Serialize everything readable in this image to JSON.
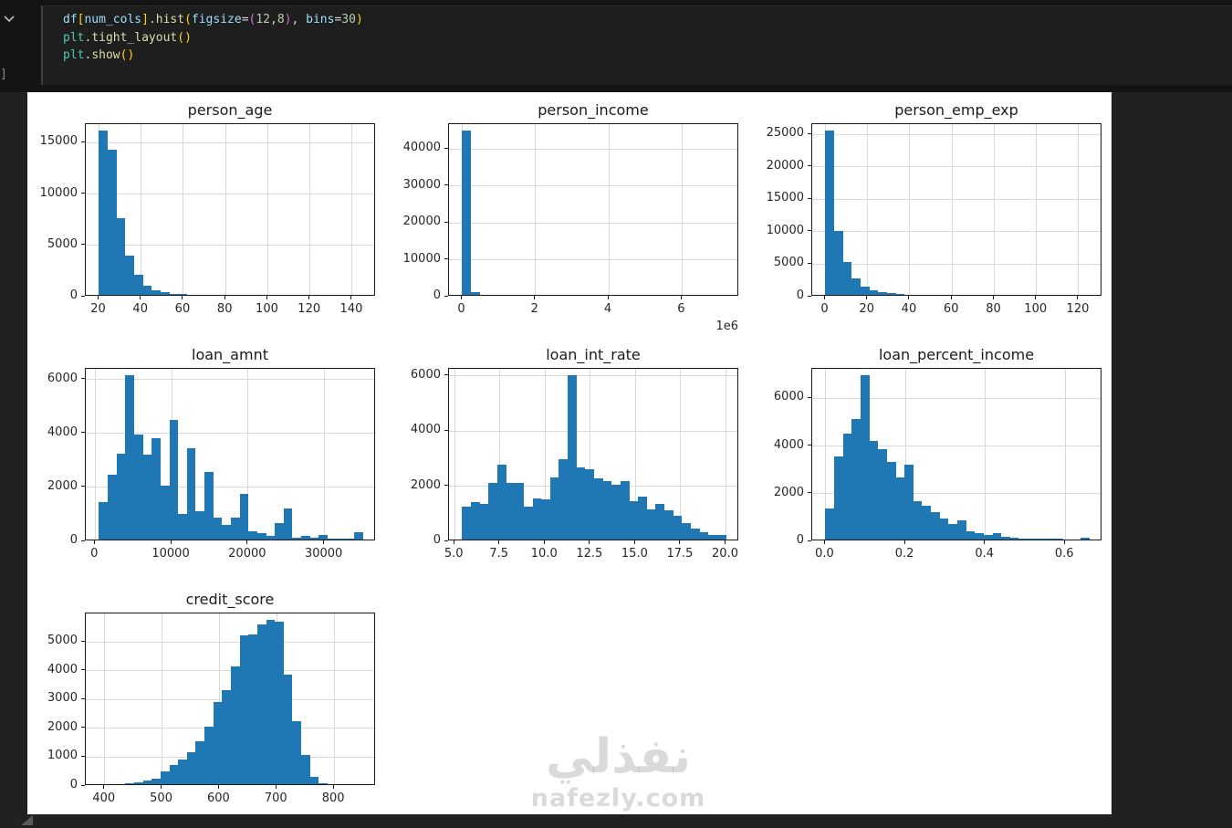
{
  "code_cell": {
    "execution_bracket": "]",
    "lines": [
      [
        {
          "t": "df",
          "c": "v"
        },
        {
          "t": "[",
          "c": "b1"
        },
        {
          "t": "num_cols",
          "c": "v"
        },
        {
          "t": "]",
          "c": "b1"
        },
        {
          "t": ".",
          "c": "p"
        },
        {
          "t": "hist",
          "c": "f"
        },
        {
          "t": "(",
          "c": "b1"
        },
        {
          "t": "figsize",
          "c": "v"
        },
        {
          "t": "=",
          "c": "p"
        },
        {
          "t": "(",
          "c": "b2"
        },
        {
          "t": "12",
          "c": "n"
        },
        {
          "t": ",",
          "c": "p"
        },
        {
          "t": "8",
          "c": "n"
        },
        {
          "t": ")",
          "c": "b2"
        },
        {
          "t": ", ",
          "c": "p"
        },
        {
          "t": "bins",
          "c": "v"
        },
        {
          "t": "=",
          "c": "p"
        },
        {
          "t": "30",
          "c": "n"
        },
        {
          "t": ")",
          "c": "b1"
        }
      ],
      [
        {
          "t": "plt",
          "c": "m"
        },
        {
          "t": ".",
          "c": "p"
        },
        {
          "t": "tight_layout",
          "c": "f"
        },
        {
          "t": "(",
          "c": "b1"
        },
        {
          "t": ")",
          "c": "b1"
        }
      ],
      [
        {
          "t": "plt",
          "c": "m"
        },
        {
          "t": ".",
          "c": "p"
        },
        {
          "t": "show",
          "c": "f"
        },
        {
          "t": "(",
          "c": "b1"
        },
        {
          "t": ")",
          "c": "b1"
        }
      ]
    ]
  },
  "watermark": {
    "arabic": "نفذلي",
    "latin": "nafezly.com"
  },
  "colors": {
    "bar": "#1f77b4",
    "grid": "#d9d9d9",
    "spine": "#1a1a1a"
  },
  "chart_data": [
    {
      "type": "bar",
      "subtype": "histogram",
      "title": "person_age",
      "bin_start": 20,
      "bin_end": 145,
      "counts": [
        16000,
        14100,
        7500,
        3800,
        1950,
        900,
        410,
        250,
        120,
        60,
        30,
        20,
        12,
        8,
        5,
        3,
        2,
        2,
        1,
        1,
        1,
        0,
        0,
        0,
        0,
        0,
        0,
        0,
        0,
        2
      ],
      "xlim": [
        13.75,
        151.25
      ],
      "ylim": [
        0,
        16800
      ],
      "xtick_values": [
        20,
        40,
        60,
        80,
        100,
        120,
        140
      ],
      "xtick_labels": [
        "20",
        "40",
        "60",
        "80",
        "100",
        "120",
        "140"
      ],
      "ytick_values": [
        0,
        5000,
        10000,
        15000
      ],
      "ytick_labels": [
        "0",
        "5000",
        "10000",
        "15000"
      ],
      "grid": true,
      "offset_text": ""
    },
    {
      "type": "bar",
      "subtype": "histogram",
      "title": "person_income",
      "bin_start": 0,
      "bin_end": 7200000,
      "counts": [
        44500,
        700,
        100,
        40,
        20,
        12,
        8,
        6,
        4,
        3,
        2,
        2,
        1,
        1,
        1,
        1,
        1,
        0,
        0,
        0,
        0,
        0,
        0,
        0,
        0,
        0,
        0,
        0,
        0,
        1
      ],
      "xlim": [
        -360000,
        7560000
      ],
      "ylim": [
        0,
        46725
      ],
      "xtick_values": [
        0,
        2000000,
        4000000,
        6000000
      ],
      "xtick_labels": [
        "0",
        "2",
        "4",
        "6"
      ],
      "ytick_values": [
        0,
        10000,
        20000,
        30000,
        40000
      ],
      "ytick_labels": [
        "0",
        "10000",
        "20000",
        "30000",
        "40000"
      ],
      "grid": true,
      "offset_text": "1e6"
    },
    {
      "type": "bar",
      "subtype": "histogram",
      "title": "person_emp_exp",
      "bin_start": 0,
      "bin_end": 125,
      "counts": [
        25300,
        9900,
        5000,
        2600,
        1300,
        700,
        400,
        230,
        120,
        60,
        30,
        15,
        8,
        4,
        2,
        1,
        1,
        1,
        0,
        0,
        0,
        0,
        0,
        0,
        0,
        0,
        0,
        0,
        0,
        1
      ],
      "xlim": [
        -6.25,
        131.25
      ],
      "ylim": [
        0,
        26565
      ],
      "xtick_values": [
        0,
        20,
        40,
        60,
        80,
        100,
        120
      ],
      "xtick_labels": [
        "0",
        "20",
        "40",
        "60",
        "80",
        "100",
        "120"
      ],
      "ytick_values": [
        0,
        5000,
        10000,
        15000,
        20000,
        25000
      ],
      "ytick_labels": [
        "0",
        "5000",
        "10000",
        "15000",
        "20000",
        "25000"
      ],
      "grid": true,
      "offset_text": ""
    },
    {
      "type": "bar",
      "subtype": "histogram",
      "title": "loan_amnt",
      "bin_start": 500,
      "bin_end": 35000,
      "counts": [
        1400,
        2400,
        3200,
        6100,
        3900,
        3150,
        3750,
        2000,
        4450,
        950,
        3400,
        1050,
        2500,
        800,
        550,
        800,
        1700,
        300,
        250,
        150,
        600,
        1150,
        60,
        140,
        60,
        170,
        40,
        40,
        40,
        270
      ],
      "xlim": [
        -1225,
        36725
      ],
      "ylim": [
        0,
        6405
      ],
      "xtick_values": [
        0,
        10000,
        20000,
        30000
      ],
      "xtick_labels": [
        "0",
        "10000",
        "20000",
        "30000"
      ],
      "ytick_values": [
        0,
        2000,
        4000,
        6000
      ],
      "ytick_labels": [
        "0",
        "2000",
        "4000",
        "6000"
      ],
      "grid": true,
      "offset_text": ""
    },
    {
      "type": "bar",
      "subtype": "histogram",
      "title": "loan_int_rate",
      "bin_start": 5.42,
      "bin_end": 20.0,
      "counts": [
        1200,
        1350,
        1300,
        2050,
        2700,
        2050,
        2050,
        1200,
        1500,
        1450,
        2250,
        2900,
        5950,
        2600,
        2550,
        2200,
        2100,
        2000,
        2100,
        1400,
        1550,
        1100,
        1300,
        1050,
        850,
        600,
        400,
        250,
        180,
        150
      ],
      "xlim": [
        4.69,
        20.73
      ],
      "ylim": [
        0,
        6248
      ],
      "xtick_values": [
        5.0,
        7.5,
        10.0,
        12.5,
        15.0,
        17.5,
        20.0
      ],
      "xtick_labels": [
        "5.0",
        "7.5",
        "10.0",
        "12.5",
        "15.0",
        "17.5",
        "20.0"
      ],
      "ytick_values": [
        0,
        2000,
        4000,
        6000
      ],
      "ytick_labels": [
        "0",
        "2000",
        "4000",
        "6000"
      ],
      "grid": true,
      "offset_text": ""
    },
    {
      "type": "bar",
      "subtype": "histogram",
      "title": "loan_percent_income",
      "bin_start": 0,
      "bin_end": 0.66,
      "counts": [
        1300,
        3500,
        4450,
        5050,
        6900,
        4150,
        3800,
        3250,
        2600,
        3150,
        1600,
        1400,
        1150,
        900,
        650,
        800,
        350,
        250,
        200,
        250,
        100,
        60,
        40,
        30,
        20,
        20,
        50,
        10,
        10,
        60
      ],
      "xlim": [
        -0.033,
        0.693
      ],
      "ylim": [
        0,
        7245
      ],
      "xtick_values": [
        0.0,
        0.2,
        0.4,
        0.6
      ],
      "xtick_labels": [
        "0.0",
        "0.2",
        "0.4",
        "0.6"
      ],
      "ytick_values": [
        0,
        2000,
        4000,
        6000
      ],
      "ytick_labels": [
        "0",
        "2000",
        "4000",
        "6000"
      ],
      "grid": true,
      "offset_text": ""
    },
    {
      "type": "bar",
      "subtype": "histogram",
      "title": "credit_score",
      "bin_start": 390,
      "bin_end": 850,
      "counts": [
        2,
        3,
        5,
        30,
        60,
        120,
        200,
        430,
        650,
        870,
        1100,
        1500,
        2000,
        2850,
        3250,
        4100,
        5150,
        5200,
        5550,
        5700,
        5650,
        3800,
        2200,
        1000,
        250,
        40,
        5,
        2,
        1,
        2
      ],
      "xlim": [
        367,
        873
      ],
      "ylim": [
        0,
        5985
      ],
      "xtick_values": [
        400,
        500,
        600,
        700,
        800
      ],
      "xtick_labels": [
        "400",
        "500",
        "600",
        "700",
        "800"
      ],
      "ytick_values": [
        0,
        1000,
        2000,
        3000,
        4000,
        5000
      ],
      "ytick_labels": [
        "0",
        "1000",
        "2000",
        "3000",
        "4000",
        "5000"
      ],
      "grid": true,
      "offset_text": ""
    }
  ]
}
